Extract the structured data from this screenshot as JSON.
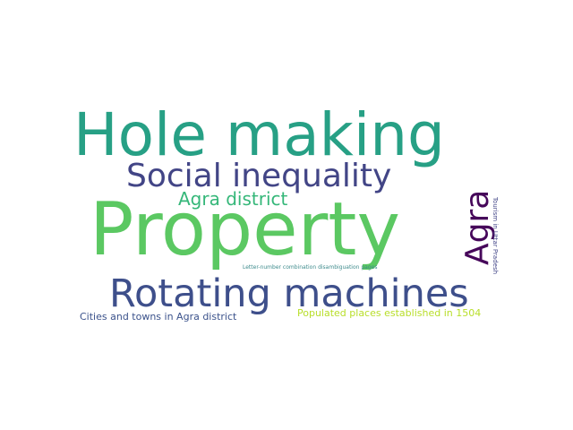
{
  "words": {
    "hole_making": {
      "text": "Hole making",
      "color": "#27A085"
    },
    "property": {
      "text": "Property",
      "color": "#5BC862"
    },
    "rotating": {
      "text": "Rotating machines",
      "color": "#3E4F8B"
    },
    "social": {
      "text": "Social inequality",
      "color": "#424586"
    },
    "agra_district": {
      "text": "Agra district",
      "color": "#35B779"
    },
    "agra": {
      "text": "Agra",
      "color": "#46075A"
    },
    "tourism": {
      "text": "Tourism in Uttar Pradesh",
      "color": "#414487"
    },
    "letter_number": {
      "text": "Letter-number combination disambiguation pages",
      "color": "#3E8B8C"
    },
    "cities": {
      "text": "Cities and towns in Agra district",
      "color": "#3B528B"
    },
    "populated": {
      "text": "Populated places established in 1504",
      "color": "#B8DE29"
    }
  }
}
